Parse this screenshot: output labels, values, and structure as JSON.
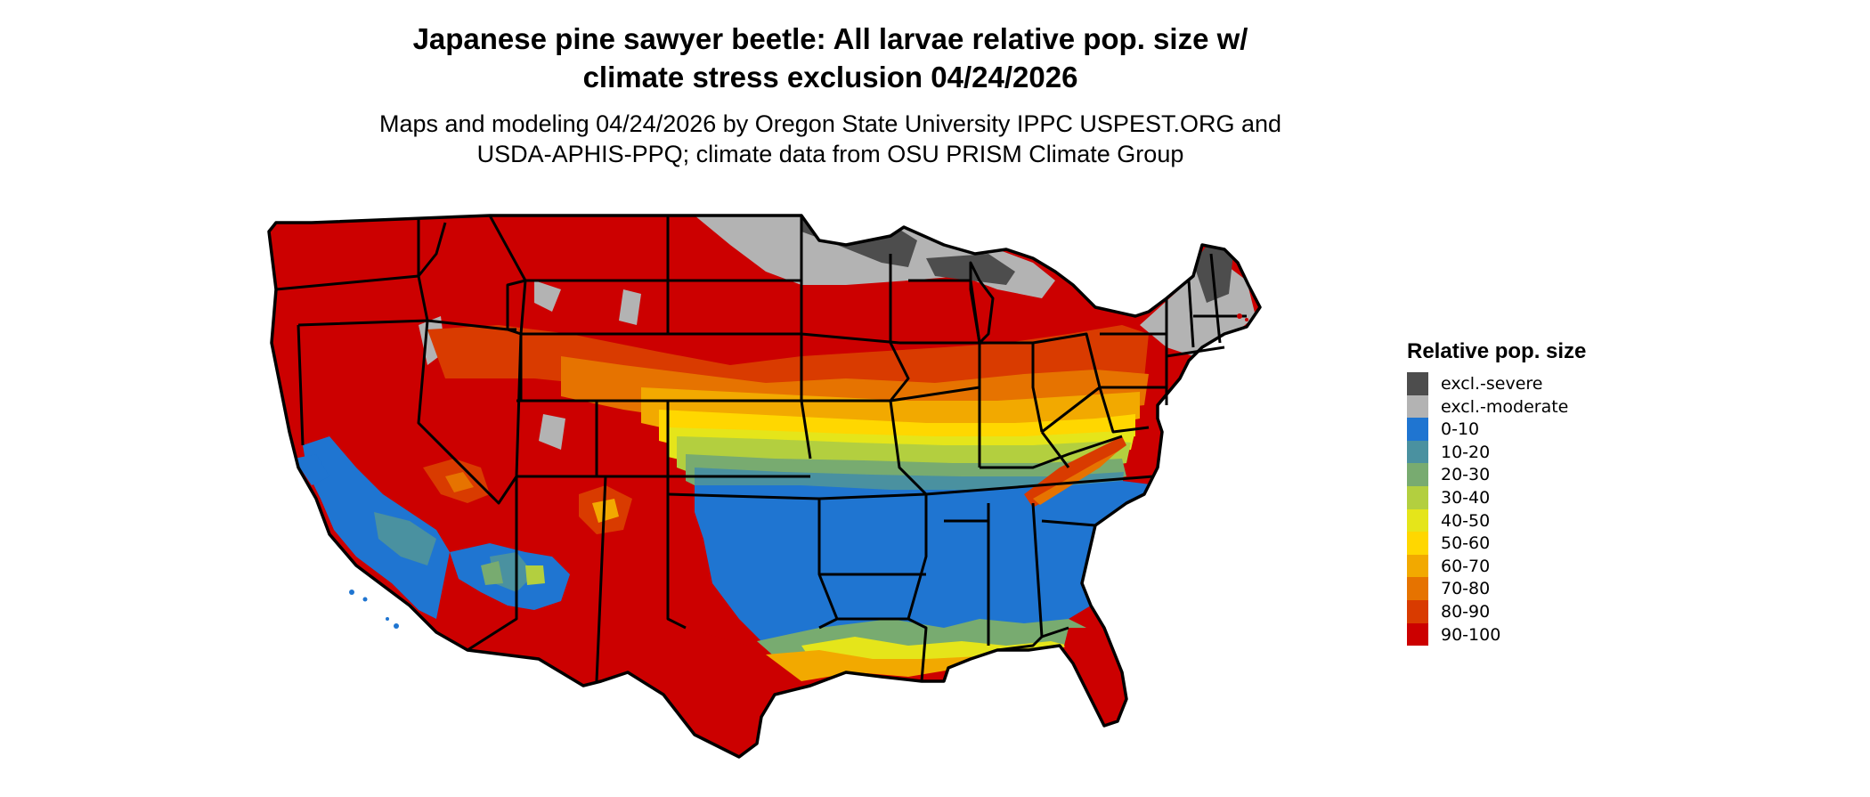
{
  "title": {
    "line1": "Japanese pine sawyer beetle: All larvae relative pop. size w/",
    "line2": "climate stress exclusion 04/24/2026"
  },
  "subtitle": {
    "line1": "Maps and modeling 04/24/2026 by Oregon State University IPPC USPEST.ORG and",
    "line2": "USDA-APHIS-PPQ; climate data from OSU PRISM Climate Group"
  },
  "legend": {
    "title": "Relative pop. size",
    "items": [
      {
        "label": "excl.-severe",
        "color": "#4d4d4d"
      },
      {
        "label": "excl.-moderate",
        "color": "#b3b3b3"
      },
      {
        "label": "0-10",
        "color": "#1f75d1"
      },
      {
        "label": "10-20",
        "color": "#4a91a0"
      },
      {
        "label": "20-30",
        "color": "#78ab70"
      },
      {
        "label": "30-40",
        "color": "#b3cf3f"
      },
      {
        "label": "40-50",
        "color": "#e5e51a"
      },
      {
        "label": "50-60",
        "color": "#ffd700"
      },
      {
        "label": "60-70",
        "color": "#f2a900"
      },
      {
        "label": "70-80",
        "color": "#e67300"
      },
      {
        "label": "80-90",
        "color": "#d93b00"
      },
      {
        "label": "90-100",
        "color": "#cc0000"
      }
    ]
  },
  "map": {
    "region": "Contiguous United States",
    "border_color": "#000000"
  }
}
